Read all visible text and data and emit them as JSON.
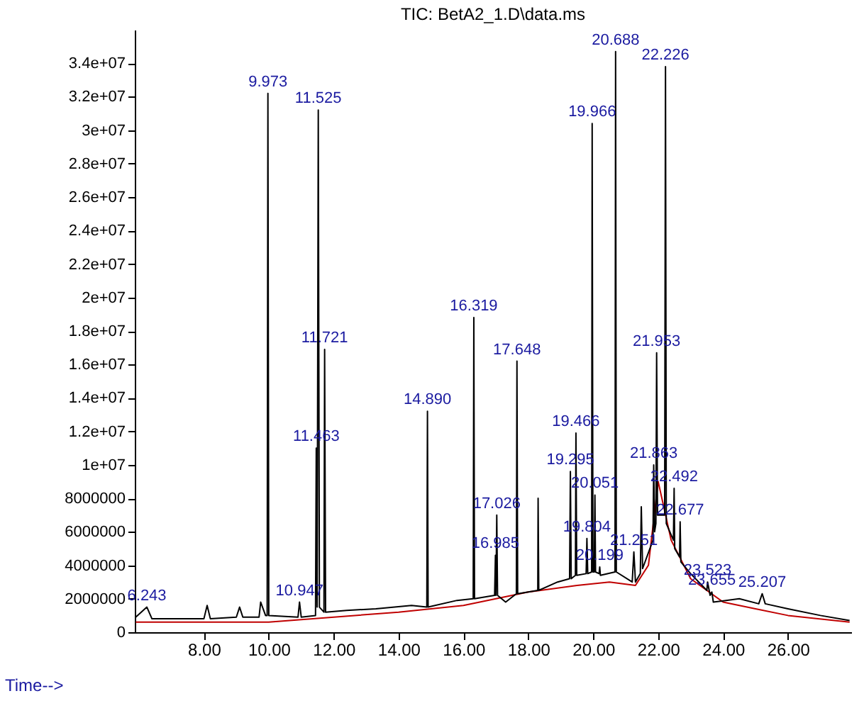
{
  "chart_data": {
    "type": "line",
    "title": "TIC: BetA2_1.D\\data.ms",
    "xlabel": "Time-->",
    "xlim": [
      5.87,
      27.95
    ],
    "ylim": [
      0,
      36000000
    ],
    "xticks": [
      {
        "value": 8,
        "label": "8.00"
      },
      {
        "value": 10,
        "label": "10.00"
      },
      {
        "value": 12,
        "label": "12.00"
      },
      {
        "value": 14,
        "label": "14.00"
      },
      {
        "value": 16,
        "label": "16.00"
      },
      {
        "value": 18,
        "label": "18.00"
      },
      {
        "value": 20,
        "label": "20.00"
      },
      {
        "value": 22,
        "label": "22.00"
      },
      {
        "value": 24,
        "label": "24.00"
      },
      {
        "value": 26,
        "label": "26.00"
      }
    ],
    "yticks": [
      0,
      2000000,
      4000000,
      6000000,
      8000000,
      {
        "value": 10000000,
        "label": "1e+07"
      },
      {
        "value": 12000000,
        "label": "1.2e+07"
      },
      {
        "value": 14000000,
        "label": "1.4e+07"
      },
      {
        "value": 16000000,
        "label": "1.6e+07"
      },
      {
        "value": 18000000,
        "label": "1.8e+07"
      },
      {
        "value": 20000000,
        "label": "2e+07"
      },
      {
        "value": 22000000,
        "label": "2.2e+07"
      },
      {
        "value": 24000000,
        "label": "2.4e+07"
      },
      {
        "value": 26000000,
        "label": "2.6e+07"
      },
      {
        "value": 28000000,
        "label": "2.8e+07"
      },
      {
        "value": 30000000,
        "label": "3e+07"
      },
      {
        "value": 32000000,
        "label": "3.2e+07"
      },
      {
        "value": 34000000,
        "label": "3.4e+07"
      }
    ],
    "grid": false,
    "marker": "none",
    "line_style": "solid",
    "series": [
      {
        "color": "#000000",
        "x": [
          5.9,
          6.243,
          6.4,
          8.0,
          8.1,
          8.2,
          9.0,
          9.1,
          9.2,
          9.7,
          9.75,
          9.9,
          9.95,
          9.973,
          10.0,
          10.9,
          10.947,
          11.0,
          11.44,
          11.463,
          11.49,
          11.525,
          11.56,
          11.7,
          11.721,
          11.75,
          12.4,
          13.3,
          14.4,
          14.87,
          14.89,
          14.91,
          15.8,
          16.3,
          16.319,
          16.34,
          16.96,
          16.985,
          17.0,
          17.026,
          17.05,
          17.3,
          17.63,
          17.648,
          17.67,
          18.29,
          18.3,
          18.32,
          18.9,
          19.27,
          19.295,
          19.32,
          19.45,
          19.466,
          19.49,
          19.78,
          19.804,
          19.83,
          19.95,
          19.966,
          19.99,
          20.03,
          20.051,
          20.07,
          20.18,
          20.199,
          20.22,
          20.67,
          20.688,
          20.71,
          21.2,
          21.251,
          21.3,
          21.45,
          21.48,
          21.52,
          21.84,
          21.863,
          21.89,
          21.93,
          21.953,
          21.98,
          22.2,
          22.226,
          22.25,
          22.47,
          22.492,
          22.51,
          22.66,
          22.677,
          22.7,
          23.0,
          23.5,
          23.523,
          23.6,
          23.655,
          23.7,
          24.5,
          25.1,
          25.207,
          25.3,
          26.0,
          27.0,
          27.9
        ],
        "values": [
          900000,
          1500000,
          800000,
          800000,
          1600000,
          800000,
          900000,
          1500000,
          900000,
          900000,
          1800000,
          1000000,
          1000000,
          32200000,
          1000000,
          900000,
          1800000,
          900000,
          1000000,
          11000000,
          1500000,
          31200000,
          1500000,
          1200000,
          16900000,
          1200000,
          1300000,
          1400000,
          1600000,
          1500000,
          13200000,
          1500000,
          1900000,
          2000000,
          18800000,
          2000000,
          2200000,
          4600000,
          2200000,
          7000000,
          2200000,
          1800000,
          2300000,
          16200000,
          2300000,
          2500000,
          8000000,
          2500000,
          3000000,
          3200000,
          9600000,
          3200000,
          3400000,
          11900000,
          3400000,
          3500000,
          5600000,
          3500000,
          3600000,
          30400000,
          3600000,
          3600000,
          8200000,
          3600000,
          3500000,
          3900000,
          3400000,
          3600000,
          34700000,
          3600000,
          3000000,
          4800000,
          3000000,
          3500000,
          7500000,
          3800000,
          5500000,
          10000000,
          6000000,
          6500000,
          16700000,
          7000000,
          7000000,
          33800000,
          6500000,
          5500000,
          8600000,
          5000000,
          4500000,
          6600000,
          4200000,
          3500000,
          2500000,
          3000000,
          2200000,
          2400000,
          1800000,
          2000000,
          1700000,
          2300000,
          1700000,
          1400000,
          1000000,
          700000
        ]
      },
      {
        "color": "#c00000",
        "x": [
          5.9,
          10.0,
          14.0,
          16.0,
          18.0,
          19.5,
          20.5,
          21.3,
          21.7,
          22.0,
          22.4,
          23.0,
          24.0,
          25.0,
          26.0,
          27.9
        ],
        "values": [
          600000,
          600000,
          1200000,
          1600000,
          2400000,
          2800000,
          3000000,
          2800000,
          4000000,
          9000000,
          5500000,
          3200000,
          1800000,
          1400000,
          1000000,
          600000
        ]
      }
    ],
    "annotations": [
      {
        "text": "6.243",
        "x": 6.243,
        "y": 1500000
      },
      {
        "text": "9.973",
        "x": 9.973,
        "y": 32200000
      },
      {
        "text": "10.947",
        "x": 10.947,
        "y": 1800000
      },
      {
        "text": "11.463",
        "x": 11.463,
        "y": 11000000
      },
      {
        "text": "11.525",
        "x": 11.525,
        "y": 31200000
      },
      {
        "text": "11.721",
        "x": 11.721,
        "y": 16900000
      },
      {
        "text": "14.890",
        "x": 14.89,
        "y": 13200000
      },
      {
        "text": "16.319",
        "x": 16.319,
        "y": 18800000
      },
      {
        "text": "16.985",
        "x": 16.985,
        "y": 4600000
      },
      {
        "text": "17.026",
        "x": 17.026,
        "y": 7000000
      },
      {
        "text": "17.648",
        "x": 17.648,
        "y": 16200000
      },
      {
        "text": "19.295",
        "x": 19.295,
        "y": 9600000
      },
      {
        "text": "19.466",
        "x": 19.466,
        "y": 11900000
      },
      {
        "text": "19.804",
        "x": 19.804,
        "y": 5600000
      },
      {
        "text": "19.966",
        "x": 19.966,
        "y": 30400000
      },
      {
        "text": "20.051",
        "x": 20.051,
        "y": 8200000
      },
      {
        "text": "20.199",
        "x": 20.199,
        "y": 3900000
      },
      {
        "text": "20.688",
        "x": 20.688,
        "y": 34700000
      },
      {
        "text": "21.251",
        "x": 21.251,
        "y": 4800000
      },
      {
        "text": "21.863",
        "x": 21.863,
        "y": 10000000
      },
      {
        "text": "21.953",
        "x": 21.953,
        "y": 16700000
      },
      {
        "text": "22.226",
        "x": 22.226,
        "y": 33800000
      },
      {
        "text": "22.492",
        "x": 22.492,
        "y": 8600000
      },
      {
        "text": "22.677",
        "x": 22.677,
        "y": 6600000
      },
      {
        "text": "23.523",
        "x": 23.523,
        "y": 3000000
      },
      {
        "text": "23.655",
        "x": 23.655,
        "y": 2400000
      },
      {
        "text": "25.207",
        "x": 25.207,
        "y": 2300000
      }
    ]
  }
}
